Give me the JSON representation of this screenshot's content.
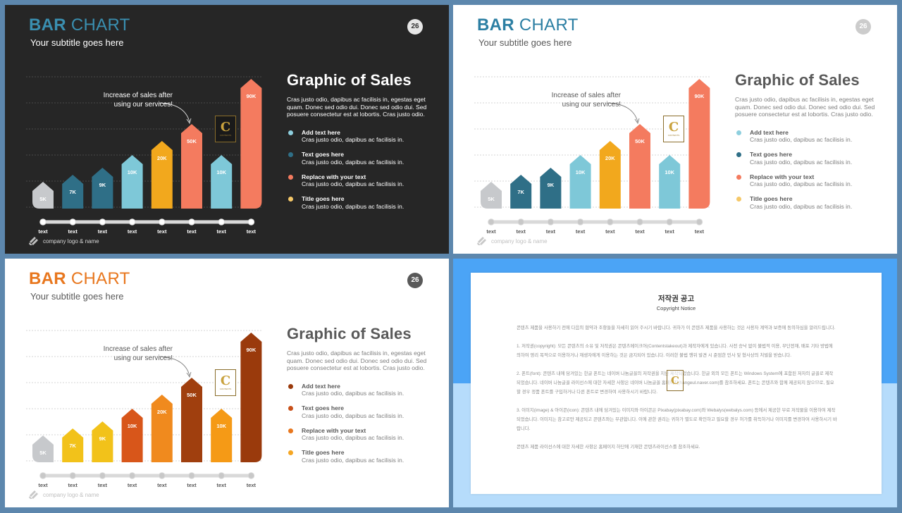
{
  "slides": [
    {
      "id": "dark",
      "theme": {
        "bg": "#262626",
        "accent": "#3a8fb0",
        "title_second": "#3a8fb0",
        "text": "#ffffff",
        "muted": "#dcdcdc",
        "grid": "#555555",
        "track": "#d9d9d9",
        "dot": "#ffffff",
        "pagenum_bg": "#e6e6e6",
        "pagenum_fg": "#333333",
        "label_color": "#ffffff"
      },
      "title_a": "BAR",
      "title_b": "CHART",
      "subtitle": "Your subtitle goes here",
      "page_number": "26",
      "annotation": "Increase of sales after using our services!",
      "heading": "Graphic of Sales",
      "description": "Cras justo odio, dapibus ac facilisis in, egestas eget quam. Donec sed odio dui. Donec sed odio dui. Sed posuere consectetur est at lobortis. Cras justo odio.",
      "items": [
        {
          "title": "Add text here",
          "text": "Cras justo odio, dapibus ac facilisis in.",
          "color": "#8ecfde"
        },
        {
          "title": "Text goes here",
          "text": "Cras justo odio, dapibus ac facilisis in.",
          "color": "#2f6f87"
        },
        {
          "title": "Replace with your text",
          "text": "Cras justo odio, dapibus ac facilisis in.",
          "color": "#f47b5f"
        },
        {
          "title": "Title goes here",
          "text": "Cras justo odio, dapibus ac facilisis in.",
          "color": "#f5c868"
        }
      ],
      "logo_text": "company logo & name",
      "chart_data": {
        "type": "bar",
        "categories": [
          "text",
          "text",
          "text",
          "text",
          "text",
          "text",
          "text",
          "text"
        ],
        "values": [
          5,
          7,
          9,
          10,
          20,
          50,
          10,
          90
        ],
        "labels": [
          "5K",
          "7K",
          "9K",
          "10K",
          "20K",
          "50K",
          "10K",
          "90K"
        ],
        "colors": [
          "#c7c9cc",
          "#2f6f87",
          "#2f6f87",
          "#7ec8d8",
          "#f2a81d",
          "#f47b5f",
          "#7ec8d8",
          "#f47b5f"
        ]
      }
    },
    {
      "id": "light",
      "theme": {
        "bg": "#ffffff",
        "accent": "#2c7fa3",
        "title_second": "#2c7fa3",
        "text": "#595959",
        "muted": "#7f7f7f",
        "grid": "#c8c8c8",
        "track": "#d9d9d9",
        "dot": "#c8c8c8",
        "pagenum_bg": "#cccccc",
        "pagenum_fg": "#ffffff",
        "label_color": "#ffffff"
      },
      "title_a": "BAR",
      "title_b": "CHART",
      "subtitle": "Your subtitle goes here",
      "page_number": "26",
      "annotation": "Increase of sales after using our services!",
      "heading": "Graphic of Sales",
      "description": "Cras justo odio, dapibus ac facilisis in, egestas eget quam. Donec sed odio dui. Donec sed odio dui. Sed posuere consectetur est at lobortis. Cras justo odio.",
      "items": [
        {
          "title": "Add text here",
          "text": "Cras justo odio, dapibus ac facilisis in.",
          "color": "#8ecfde"
        },
        {
          "title": "Text goes here",
          "text": "Cras justo odio, dapibus ac facilisis in.",
          "color": "#2f6f87"
        },
        {
          "title": "Replace with your text",
          "text": "Cras justo odio, dapibus ac facilisis in.",
          "color": "#f47b5f"
        },
        {
          "title": "Title goes here",
          "text": "Cras justo odio, dapibus ac facilisis in.",
          "color": "#f5c868"
        }
      ],
      "logo_text": "company logo & name",
      "chart_data": {
        "type": "bar",
        "categories": [
          "text",
          "text",
          "text",
          "text",
          "text",
          "text",
          "text",
          "text"
        ],
        "values": [
          5,
          7,
          9,
          10,
          20,
          50,
          10,
          90
        ],
        "labels": [
          "5K",
          "7K",
          "9K",
          "10K",
          "20K",
          "50K",
          "10K",
          "90K"
        ],
        "colors": [
          "#c7c9cc",
          "#2f6f87",
          "#2f6f87",
          "#7ec8d8",
          "#f2a81d",
          "#f47b5f",
          "#7ec8d8",
          "#f47b5f"
        ]
      }
    },
    {
      "id": "orange",
      "theme": {
        "bg": "#ffffff",
        "accent": "#e8771e",
        "title_second": "#e8771e",
        "text": "#595959",
        "muted": "#7f7f7f",
        "grid": "#c8c8c8",
        "track": "#d9d9d9",
        "dot": "#c8c8c8",
        "pagenum_bg": "#595959",
        "pagenum_fg": "#ffffff",
        "label_color": "#ffffff"
      },
      "title_a": "BAR",
      "title_b": "CHART",
      "subtitle": "Your subtitle goes here",
      "page_number": "26",
      "annotation": "Increase of sales after using our services!",
      "heading": "Graphic of Sales",
      "description": "Cras justo odio, dapibus ac facilisis in, egestas eget quam. Donec sed odio dui. Donec sed odio dui. Sed posuere consectetur est at lobortis. Cras justo odio.",
      "items": [
        {
          "title": "Add text here",
          "text": "Cras justo odio, dapibus ac facilisis in.",
          "color": "#9a3a0c"
        },
        {
          "title": "Text goes here",
          "text": "Cras justo odio, dapibus ac facilisis in.",
          "color": "#c8501a"
        },
        {
          "title": "Replace with your text",
          "text": "Cras justo odio, dapibus ac facilisis in.",
          "color": "#e8771e"
        },
        {
          "title": "Title goes here",
          "text": "Cras justo odio, dapibus ac facilisis in.",
          "color": "#f5a623"
        }
      ],
      "logo_text": "company logo & name",
      "chart_data": {
        "type": "bar",
        "categories": [
          "text",
          "text",
          "text",
          "text",
          "text",
          "text",
          "text",
          "text"
        ],
        "values": [
          5,
          7,
          9,
          10,
          20,
          50,
          10,
          90
        ],
        "labels": [
          "5K",
          "7K",
          "9K",
          "10K",
          "20K",
          "50K",
          "10K",
          "90K"
        ],
        "colors": [
          "#c7c9cc",
          "#f2c21a",
          "#f2c21a",
          "#d8561a",
          "#f08a1e",
          "#a03f0e",
          "#f59a16",
          "#9a3a0c"
        ]
      }
    }
  ],
  "notice": {
    "title": "저작권 공고",
    "subtitle": "Copyright Notice",
    "paragraphs": [
      "콘텐츠 제품을 사용하기 전에 다음의 협약과 조항들을 자세히 읽어 주시기 바랍니다. 귀하가 이 콘텐츠 제품을 사용하는 것은 사용자 계약과 보증에 동의하심을 알려드립니다.",
      "1. 저작권(copyright): 모든 콘텐츠의 소유 및 저작권은 콘텐츠메이크어(Contentstakeout)과 제작자에게 있습니다. 사전 승낙 없이 불법적 이용, 무단전재, 배포 기타 방법에 의하여 영리 목적으로 이용하거나 재생자에게 이용하는 것은 금지되어 있습니다. 이러한 불법 행위 발견 시 준엄한 민사 및 형사상의 처벌을 받습니다.",
      "2. 폰트(font): 콘텐츠 내에 담겨있는 한글 폰트는 네이버 나눔글꼴의 저작권을 지닌 제작되었습니다. 한글 외의 모든 폰트는 Windows System에 포함된 저자의 글꼴로 제작되었습니다. 네이버 나눔글꼴 라이선스에 대한 자세한 사항은 네이버 나눔글꼴 홈페이지(hangeul.naver.com)를 참조하세요. 폰트는 콘텐츠와 함께 제공되지 않으므로, 필요할 경우 정품 폰트를 구입하거나 다른 폰트로 변경하여 사용하시기 바랍니다.",
      "3. 이미지(image) & 아이콘(icon): 콘텐츠 내에 담겨있는 이미지와 아이콘은 Pixabay(pixabay.com)와 Webalys(webalys.com) 등에서 제공한 무료 저작물을 이용하여 제작되었습니다. 이미지는 참고로만 제공되고 콘텐츠와는 무관합니다. 이에 관한 권리는 귀하가 별도로 확인하고 필요할 경우 허가를 취득하거나 이미지를 변경하여 사용하시기 바랍니다.",
      "콘텐츠 제품 라이선스에 대한 자세한 사항은 홈페이지 하단에 기재한 콘텐츠라이선스를 참조하세요."
    ]
  },
  "stamp": {
    "letter": "C",
    "text": "CONTENTS"
  }
}
